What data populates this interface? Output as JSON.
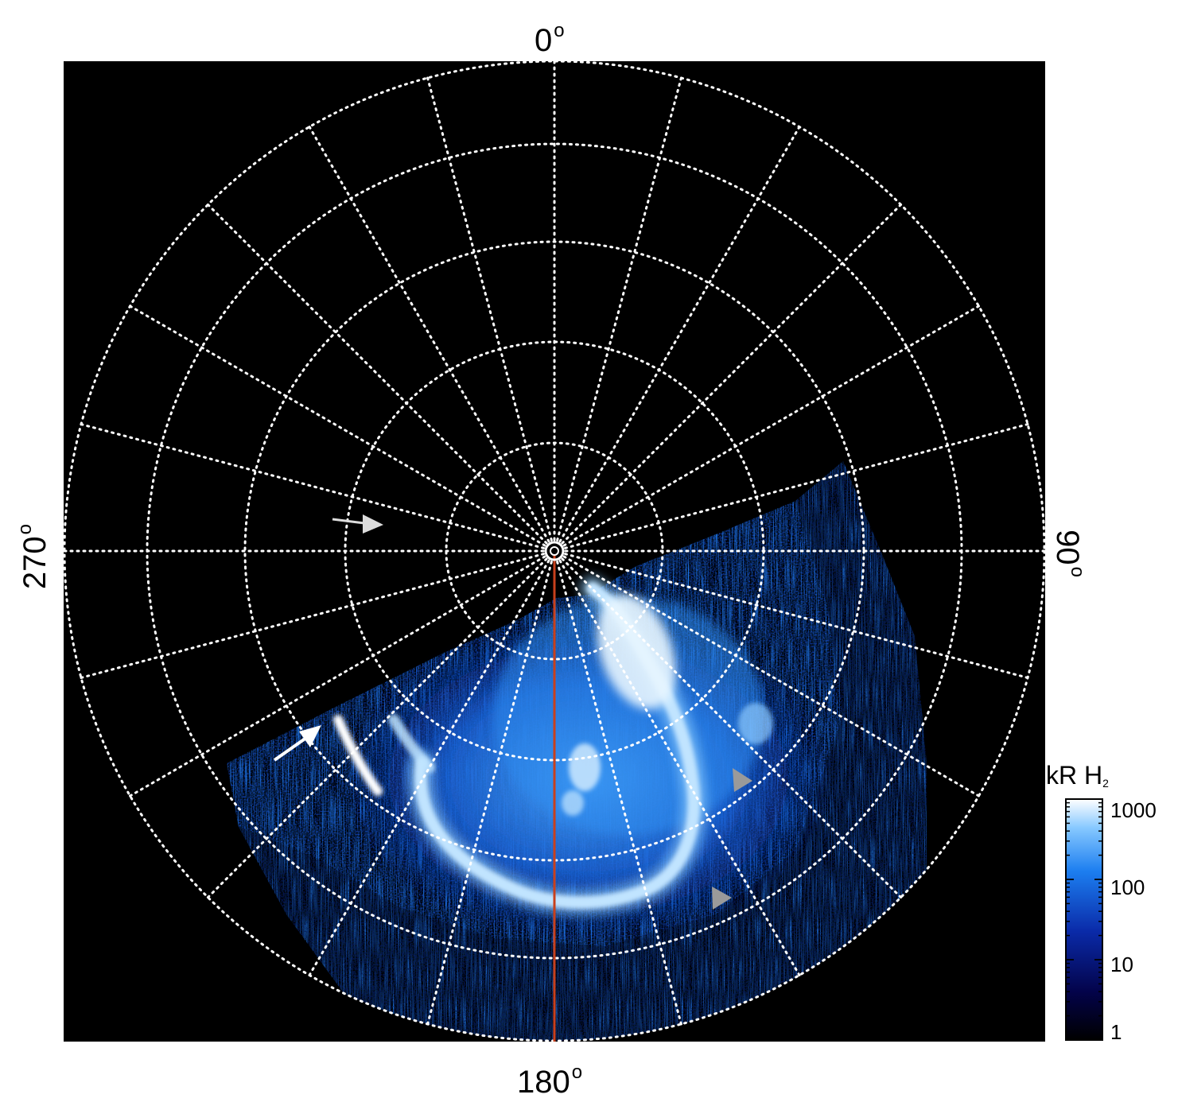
{
  "figure": {
    "type": "polar-projection-image",
    "labels": {
      "top": "0",
      "bottom": "180",
      "left": "270",
      "right": "90",
      "degree_symbol": "o"
    },
    "colorbar": {
      "title_prefix": "kR H",
      "title_subscript": "2",
      "ticks": [
        "1000",
        "100",
        "10",
        "1"
      ],
      "scale": "log",
      "colors": [
        "#000000",
        "#03034a",
        "#0a2aa8",
        "#1c7ef0",
        "#86c8ff",
        "#ffffff"
      ]
    },
    "colors": {
      "background": "#000000",
      "grid": "#ffffff",
      "meridian_line": "#c8401c",
      "white_arrow": "#ffffff",
      "light_arrow": "#dcdcdc",
      "grey_arrowhead": "#9a9a9a"
    },
    "annotations": [
      "white-arrow",
      "light-arrow",
      "grey-arrowhead-upper",
      "grey-arrowhead-lower"
    ]
  }
}
